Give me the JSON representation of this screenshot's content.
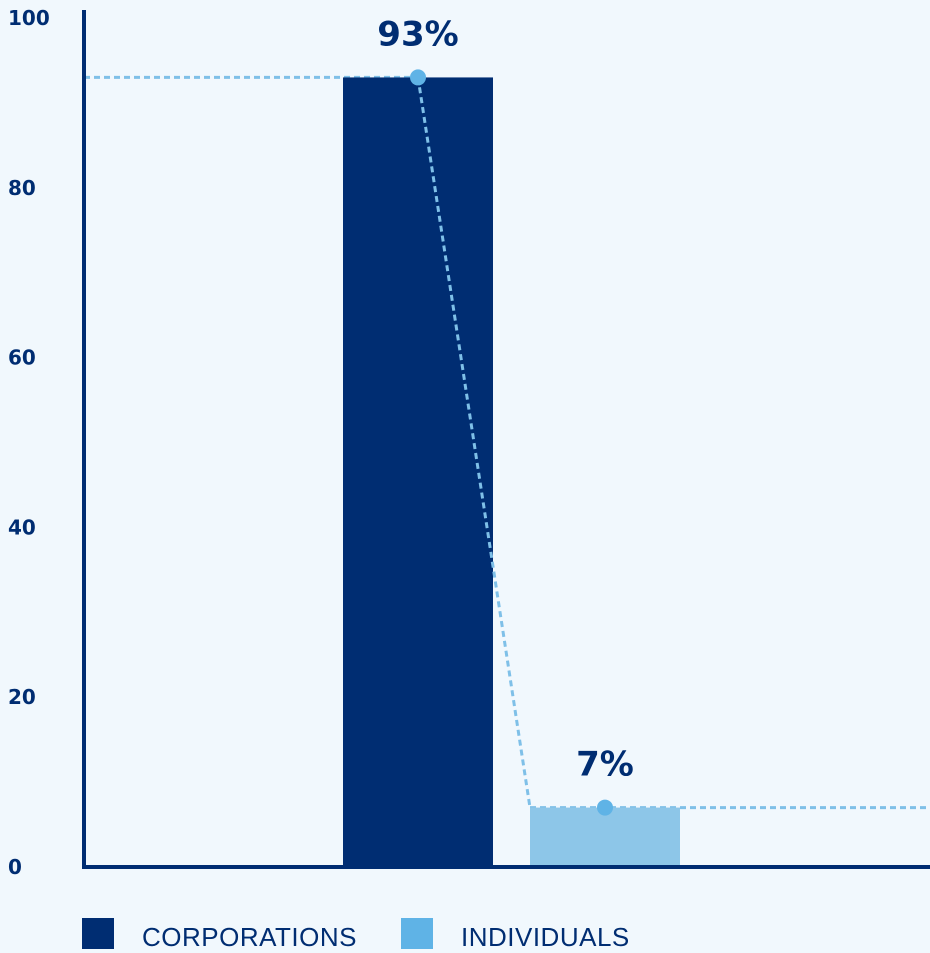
{
  "chart_data": {
    "type": "bar",
    "categories": [
      "CORPORATIONS",
      "INDIVIDUALS"
    ],
    "values": [
      93,
      7
    ],
    "data_labels": [
      "93%",
      "7%"
    ],
    "ylim": [
      0,
      100
    ],
    "yticks": [
      0,
      20,
      40,
      60,
      80,
      100
    ],
    "grid": false,
    "legend": {
      "position": "bottom-left",
      "entries": [
        {
          "label": "CORPORATIONS",
          "color": "#002d72"
        },
        {
          "label": "INDIVIDUALS",
          "color": "#8dc6e8"
        }
      ]
    },
    "colors": {
      "axis": "#002d72",
      "corporations_bar": "#002d72",
      "individuals_bar": "#8dc6e8",
      "legend_individuals_swatch": "#5fb3e6",
      "marker": "#5fb3e6",
      "dashed_line": "#7fc0e8",
      "background": "#f1f8fd"
    }
  }
}
